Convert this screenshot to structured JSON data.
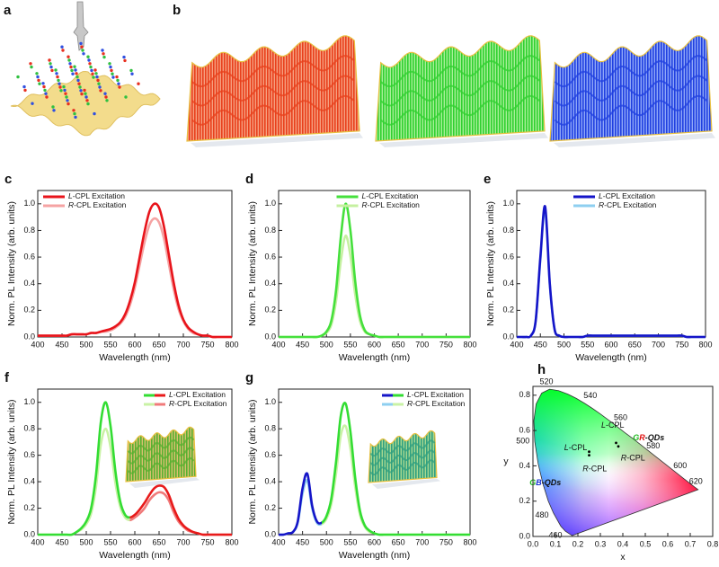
{
  "illustrations": {
    "labels": [
      "a",
      "b"
    ]
  },
  "chart_data": [
    {
      "type": "line",
      "label": "c",
      "xlabel": "Wavelength (nm)",
      "ylabel": "Norm. PL Intensity (arb. units)",
      "xlim": [
        400,
        800
      ],
      "xticks": [
        400,
        450,
        500,
        550,
        600,
        650,
        700,
        750,
        800
      ],
      "ylim": [
        0,
        1.1
      ],
      "yticks": [
        {
          "value": 0,
          "label": "0.0"
        },
        0.2,
        0.4,
        0.6,
        0.8,
        {
          "value": 1,
          "label": "1.0"
        }
      ],
      "legend": "upper left",
      "x": [
        400,
        410,
        420,
        430,
        440,
        450,
        460,
        470,
        480,
        490,
        500,
        510,
        520,
        530,
        540,
        550,
        560,
        570,
        580,
        590,
        600,
        610,
        620,
        630,
        640,
        650,
        660,
        670,
        680,
        690,
        700,
        710,
        720,
        730,
        740,
        750,
        760,
        770,
        780,
        790,
        800
      ],
      "series": [
        {
          "name": "L-CPL Excitation",
          "color": "#e8141b",
          "values": [
            0.01,
            0.01,
            0.01,
            0.01,
            0.01,
            0.01,
            0.01,
            0.02,
            0.02,
            0.02,
            0.02,
            0.03,
            0.03,
            0.04,
            0.05,
            0.06,
            0.08,
            0.11,
            0.17,
            0.27,
            0.41,
            0.6,
            0.79,
            0.94,
            1.0,
            0.97,
            0.83,
            0.62,
            0.41,
            0.24,
            0.13,
            0.07,
            0.04,
            0.02,
            0.01,
            0.01,
            0,
            0,
            0,
            0,
            0
          ]
        },
        {
          "name": "R-CPL Excitation",
          "color": "#f5a3a3",
          "values": [
            0.01,
            0.01,
            0.01,
            0.01,
            0.01,
            0.01,
            0.01,
            0.02,
            0.02,
            0.02,
            0.02,
            0.03,
            0.03,
            0.04,
            0.04,
            0.05,
            0.07,
            0.1,
            0.15,
            0.24,
            0.37,
            0.54,
            0.71,
            0.84,
            0.89,
            0.86,
            0.74,
            0.55,
            0.36,
            0.21,
            0.12,
            0.06,
            0.03,
            0.02,
            0.01,
            0.01,
            0,
            0,
            0,
            0,
            0
          ]
        }
      ]
    },
    {
      "type": "line",
      "label": "d",
      "xlabel": "Wavelength (nm)",
      "ylabel": "Norm. PL Intensity (arb. units)",
      "xlim": [
        400,
        800
      ],
      "xticks": [
        400,
        450,
        500,
        550,
        600,
        650,
        700,
        750,
        800
      ],
      "ylim": [
        0,
        1.1
      ],
      "yticks": [
        {
          "value": 0,
          "label": "0.0"
        },
        0.2,
        0.4,
        0.6,
        0.8,
        {
          "value": 1,
          "label": "1.0"
        }
      ],
      "legend": "upper center",
      "x": [
        400,
        410,
        420,
        430,
        440,
        450,
        460,
        470,
        480,
        490,
        500,
        510,
        520,
        530,
        540,
        550,
        560,
        570,
        580,
        590,
        600,
        610,
        620,
        630,
        640,
        650,
        660,
        670,
        680,
        690,
        700,
        710,
        720,
        730,
        740,
        750,
        760,
        770,
        780,
        790,
        800
      ],
      "series": [
        {
          "name": "L-CPL Excitation",
          "color": "#45e03c",
          "values": [
            0,
            0,
            0,
            0,
            0,
            0,
            0,
            0,
            0,
            0.01,
            0.04,
            0.12,
            0.35,
            0.75,
            1.0,
            0.8,
            0.42,
            0.16,
            0.05,
            0.02,
            0.01,
            0,
            0,
            0,
            0,
            0,
            0,
            0,
            0,
            0,
            0,
            0,
            0,
            0,
            0,
            0,
            0,
            0,
            0,
            0,
            0
          ]
        },
        {
          "name": "R-CPL Excitation",
          "color": "#c5f0a0",
          "values": [
            0,
            0,
            0,
            0,
            0,
            0,
            0,
            0,
            0,
            0.01,
            0.03,
            0.09,
            0.27,
            0.57,
            0.76,
            0.61,
            0.32,
            0.12,
            0.04,
            0.02,
            0.01,
            0,
            0,
            0,
            0,
            0,
            0,
            0,
            0,
            0,
            0,
            0,
            0,
            0,
            0,
            0,
            0,
            0,
            0,
            0,
            0
          ]
        }
      ]
    },
    {
      "type": "line",
      "label": "e",
      "xlabel": "Wavelength (nm)",
      "ylabel": "Norm. PL Intensity (arb. units)",
      "xlim": [
        400,
        800
      ],
      "xticks": [
        400,
        450,
        500,
        550,
        600,
        650,
        700,
        750,
        800
      ],
      "ylim": [
        0,
        1.1
      ],
      "yticks": [
        {
          "value": 0,
          "label": "0.0"
        },
        0.2,
        0.4,
        0.6,
        0.8,
        {
          "value": 1,
          "label": "1.0"
        }
      ],
      "legend": "upper center",
      "x": [
        400,
        410,
        420,
        430,
        440,
        450,
        460,
        470,
        480,
        490,
        500,
        510,
        520,
        530,
        540,
        550,
        560,
        570,
        580,
        590,
        600,
        610,
        620,
        630,
        640,
        650,
        660,
        670,
        680,
        690,
        700,
        710,
        720,
        730,
        740,
        750,
        760,
        770,
        780,
        790,
        800
      ],
      "series": [
        {
          "name": "L-CPL Excitation",
          "color": "#1515c8",
          "values": [
            0,
            0,
            0,
            0.01,
            0.12,
            0.6,
            0.98,
            0.4,
            0.06,
            0.01,
            0,
            0,
            0,
            0,
            0,
            0.01,
            0.01,
            0.01,
            0.01,
            0.01,
            0.01,
            0.01,
            0.01,
            0.01,
            0.01,
            0.01,
            0.01,
            0.01,
            0.01,
            0.01,
            0.01,
            0.01,
            0.01,
            0.01,
            0.01,
            0.01,
            0,
            0,
            0,
            0,
            0
          ]
        },
        {
          "name": "R-CPL Excitation",
          "color": "#8ecff0",
          "values": [
            0,
            0,
            0,
            0.01,
            0.12,
            0.58,
            0.96,
            0.39,
            0.06,
            0.01,
            0,
            0,
            0,
            0,
            0,
            0.01,
            0.01,
            0.01,
            0.01,
            0.01,
            0.01,
            0.01,
            0.01,
            0.01,
            0.01,
            0.01,
            0.01,
            0.01,
            0.01,
            0.01,
            0.01,
            0.01,
            0.01,
            0.01,
            0.01,
            0.01,
            0,
            0,
            0,
            0,
            0
          ]
        }
      ]
    },
    {
      "type": "line",
      "label": "f",
      "xlabel": "Wavelength (nm)",
      "ylabel": "Norm. PL Intensity (arb. units)",
      "xlim": [
        400,
        800
      ],
      "xticks": [
        400,
        450,
        500,
        550,
        600,
        650,
        700,
        750,
        800
      ],
      "ylim": [
        0,
        1.1
      ],
      "yticks": [
        {
          "value": 0,
          "label": "0.0"
        },
        0.2,
        0.4,
        0.6,
        0.8,
        {
          "value": 1,
          "label": "1.0"
        }
      ],
      "legend": "upper right",
      "x": [
        400,
        410,
        420,
        430,
        440,
        450,
        460,
        470,
        480,
        490,
        500,
        510,
        520,
        530,
        540,
        550,
        560,
        570,
        580,
        590,
        600,
        610,
        620,
        630,
        640,
        650,
        660,
        670,
        680,
        690,
        700,
        710,
        720,
        730,
        740,
        750,
        760,
        770,
        780,
        790,
        800
      ],
      "series": [
        {
          "name": "L-CPL Excitation",
          "color": [
            "#33dd33",
            "#e81a1a"
          ],
          "values": [
            0,
            0,
            0,
            0,
            0,
            0,
            0,
            0,
            0.02,
            0.05,
            0.1,
            0.2,
            0.45,
            0.85,
            1.0,
            0.82,
            0.48,
            0.25,
            0.15,
            0.13,
            0.15,
            0.19,
            0.24,
            0.3,
            0.35,
            0.37,
            0.36,
            0.3,
            0.2,
            0.12,
            0.07,
            0.04,
            0.02,
            0.01,
            0,
            0,
            0,
            0,
            0,
            0,
            0
          ]
        },
        {
          "name": "R-CPL Excitation",
          "color": [
            "#c9f2a5",
            "#f07a7a"
          ],
          "values": [
            0,
            0,
            0,
            0,
            0,
            0,
            0,
            0,
            0.02,
            0.04,
            0.08,
            0.16,
            0.36,
            0.68,
            0.8,
            0.66,
            0.39,
            0.21,
            0.13,
            0.11,
            0.13,
            0.16,
            0.2,
            0.26,
            0.3,
            0.32,
            0.31,
            0.26,
            0.17,
            0.1,
            0.06,
            0.03,
            0.02,
            0.01,
            0,
            0,
            0,
            0,
            0,
            0,
            0
          ]
        }
      ]
    },
    {
      "type": "line",
      "label": "g",
      "xlabel": "Wavelength (nm)",
      "ylabel": "Norm. PL Intensity (arb. units)",
      "xlim": [
        400,
        800
      ],
      "xticks": [
        400,
        450,
        500,
        550,
        600,
        650,
        700,
        750,
        800
      ],
      "ylim": [
        0,
        1.1
      ],
      "yticks": [
        {
          "value": 0,
          "label": "0.0"
        },
        0.2,
        0.4,
        0.6,
        0.8,
        {
          "value": 1,
          "label": "1.0"
        }
      ],
      "legend": "upper right",
      "x": [
        400,
        410,
        420,
        430,
        440,
        450,
        460,
        470,
        480,
        490,
        500,
        510,
        520,
        530,
        540,
        550,
        560,
        570,
        580,
        590,
        600,
        610,
        620,
        630,
        640,
        650,
        660,
        670,
        680,
        690,
        700,
        710,
        720,
        730,
        740,
        750,
        760,
        770,
        780,
        790,
        800
      ],
      "series": [
        {
          "name": "L-CPL Excitation",
          "color": [
            "#1515c8",
            "#33dd33"
          ],
          "values": [
            0,
            0,
            0.01,
            0.02,
            0.1,
            0.35,
            0.46,
            0.22,
            0.1,
            0.09,
            0.14,
            0.27,
            0.55,
            0.9,
            0.99,
            0.78,
            0.43,
            0.18,
            0.07,
            0.03,
            0.01,
            0,
            0,
            0,
            0,
            0,
            0,
            0,
            0,
            0,
            0,
            0,
            0,
            0,
            0,
            0,
            0,
            0,
            0,
            0,
            0
          ]
        },
        {
          "name": "R-CPL Excitation",
          "color": [
            "#8ecff0",
            "#c9f2a5"
          ],
          "values": [
            0,
            0,
            0.01,
            0.02,
            0.09,
            0.31,
            0.41,
            0.2,
            0.09,
            0.08,
            0.12,
            0.23,
            0.46,
            0.75,
            0.82,
            0.65,
            0.36,
            0.15,
            0.06,
            0.02,
            0.01,
            0,
            0,
            0,
            0,
            0,
            0,
            0,
            0,
            0,
            0,
            0,
            0,
            0,
            0,
            0,
            0,
            0,
            0,
            0,
            0
          ]
        }
      ]
    },
    {
      "type": "scatter",
      "label": "h",
      "xlabel": "x",
      "ylabel": "y",
      "xlim": [
        0,
        0.8
      ],
      "xticks": [
        {
          "value": 0,
          "label": "0.0"
        },
        0.1,
        0.2,
        0.3,
        0.4,
        0.5,
        0.6,
        0.7,
        0.8
      ],
      "ylim": [
        0,
        0.85
      ],
      "yticks": [
        {
          "value": 0,
          "label": "0.0"
        },
        0.2,
        0.4,
        0.6,
        0.8
      ],
      "color": "#000000",
      "x": [
        0.37,
        0.38,
        0.25,
        0.25
      ],
      "values": [
        0.53,
        0.51,
        0.48,
        0.46
      ],
      "locus_labels": [
        "460",
        "480",
        "500",
        "520",
        "540",
        "560",
        "580",
        "600",
        "620"
      ],
      "annotations": [
        "L-CPL",
        "R-CPL",
        "L-CPL",
        "R-CPL",
        "GR-QDs",
        "GB-QDs"
      ]
    }
  ]
}
